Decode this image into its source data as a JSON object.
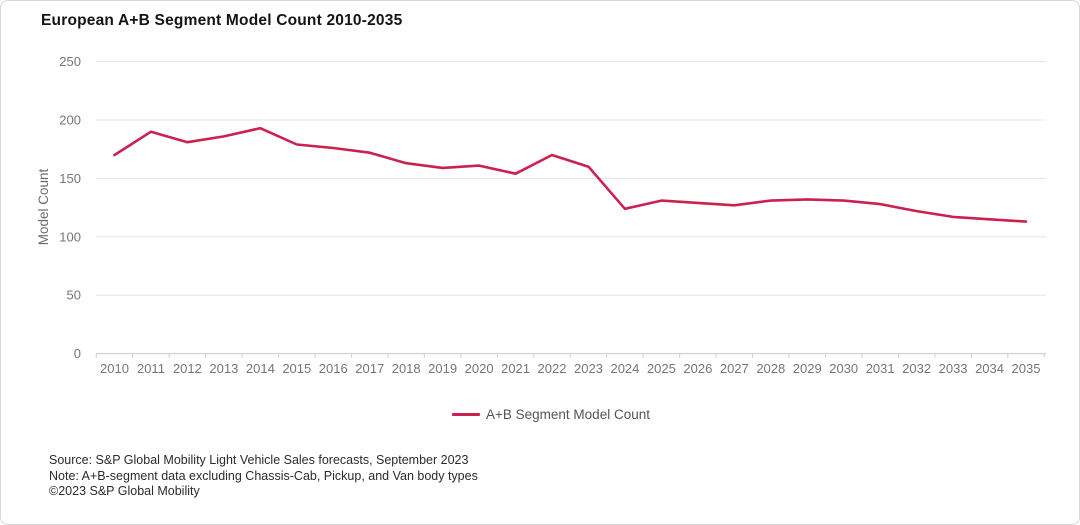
{
  "title": "European A+B Segment Model Count 2010-2035",
  "chart_data": {
    "type": "line",
    "x": [
      2010,
      2011,
      2012,
      2013,
      2014,
      2015,
      2016,
      2017,
      2018,
      2019,
      2020,
      2021,
      2022,
      2023,
      2024,
      2025,
      2026,
      2027,
      2028,
      2029,
      2030,
      2031,
      2032,
      2033,
      2034,
      2035
    ],
    "series": [
      {
        "name": "A+B Segment Model Count",
        "values": [
          170,
          190,
          181,
          186,
          193,
          179,
          176,
          172,
          163,
          159,
          161,
          154,
          170,
          160,
          124,
          131,
          129,
          127,
          131,
          132,
          131,
          128,
          122,
          117,
          115,
          113
        ]
      }
    ],
    "title": "European A+B Segment Model Count 2010-2035",
    "xlabel": "",
    "ylabel": "Model Count",
    "ylim": [
      0,
      250
    ],
    "yticks": [
      0,
      50,
      100,
      150,
      200,
      250
    ],
    "grid": true,
    "legend_position": "bottom"
  },
  "legend": {
    "label": "A+B Segment Model Count"
  },
  "footer": {
    "source": "Source: S&P Global Mobility Light Vehicle Sales forecasts, September 2023",
    "note": "Note: A+B-segment data excluding Chassis-Cab, Pickup, and Van body types",
    "copyright": "©2023 S&P Global Mobility"
  },
  "colors": {
    "line": "#cb2151",
    "grid": "#e9e9e9",
    "axis": "#d4d4d4",
    "tick_label": "#767676",
    "axis_title": "#6b6b6b",
    "title": "#141414",
    "footer": "#2b2b2b",
    "legend_text": "#555555"
  }
}
